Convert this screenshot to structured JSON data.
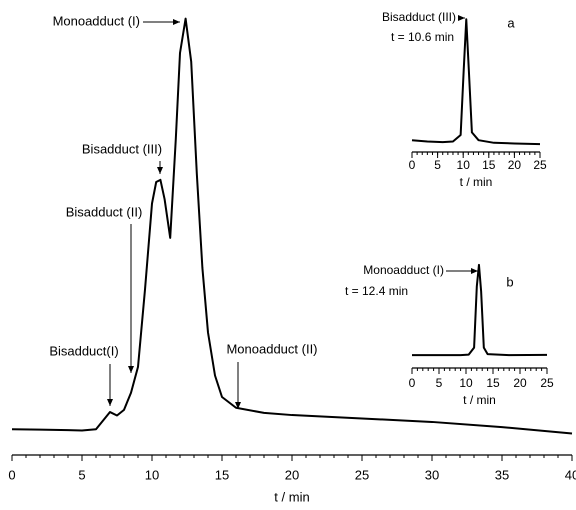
{
  "chart_data": [
    {
      "type": "line",
      "x_label": "t / min",
      "x": [
        0,
        2,
        4,
        5,
        6,
        6.5,
        7,
        7.5,
        8,
        8.5,
        9,
        9.5,
        10,
        10.3,
        10.6,
        10.9,
        11.3,
        11.7,
        12,
        12.4,
        12.8,
        13.2,
        13.6,
        14,
        14.5,
        15,
        16,
        18,
        20,
        25,
        30,
        35,
        40
      ],
      "values": [
        2.5,
        2.4,
        2.3,
        2.2,
        2.5,
        4.5,
        6.5,
        5.7,
        7,
        11,
        17,
        35,
        55,
        60,
        60.5,
        56,
        47,
        70,
        90,
        98,
        88,
        62,
        40,
        25,
        15,
        10,
        7.5,
        6.3,
        5.8,
        5,
        4.2,
        3,
        1.5
      ],
      "color": "#000000",
      "xlim": [
        0,
        40
      ],
      "xticks": [
        0,
        5,
        10,
        15,
        20,
        25,
        30,
        35,
        40
      ],
      "xminorticks": [
        0,
        1,
        2,
        3,
        4,
        5,
        6,
        7,
        8,
        9,
        10,
        11,
        12,
        13,
        14,
        15,
        16,
        17,
        18,
        19,
        20,
        21,
        22,
        23,
        24,
        25,
        26,
        27,
        28,
        29,
        30,
        31,
        32,
        33,
        34,
        35,
        36,
        37,
        38,
        39,
        40
      ],
      "ylim": [
        0,
        100
      ],
      "annotations": [
        "Monoadduct (I)",
        "Bisadduct (III)",
        "Bisadduct (II)",
        "Bisadduct(I)",
        "Monoadduct (II)"
      ]
    },
    {
      "type": "line",
      "label": "a",
      "x_label": "t / min",
      "x": [
        0,
        3,
        6,
        8,
        9.5,
        10.1,
        10.6,
        11.1,
        11.7,
        13,
        16,
        20,
        25
      ],
      "values": [
        6,
        5,
        4.5,
        5,
        10,
        60,
        99,
        60,
        12,
        6,
        4,
        3.5,
        3
      ],
      "color": "#000000",
      "xlim": [
        0,
        25
      ],
      "xticks": [
        0,
        5,
        10,
        15,
        20,
        25
      ],
      "xminorticks": [
        0,
        1,
        2,
        3,
        4,
        5,
        6,
        7,
        8,
        9,
        10,
        11,
        12,
        13,
        14,
        15,
        16,
        17,
        18,
        19,
        20,
        21,
        22,
        23,
        24,
        25
      ],
      "ylim": [
        0,
        100
      ],
      "annotations": [
        "Bisadduct (III)",
        "t = 10.6 min"
      ]
    },
    {
      "type": "line",
      "label": "b",
      "x_label": "t / min",
      "x": [
        0,
        5,
        9,
        10.5,
        11.5,
        12,
        12.4,
        12.8,
        13.3,
        14,
        18,
        25
      ],
      "values": [
        2,
        2,
        2,
        2.5,
        10,
        75,
        98,
        70,
        10,
        3,
        2,
        2.2
      ],
      "color": "#000000",
      "xlim": [
        0,
        25
      ],
      "xticks": [
        0,
        5,
        10,
        15,
        20,
        25
      ],
      "xminorticks": [
        0,
        1,
        2,
        3,
        4,
        5,
        6,
        7,
        8,
        9,
        10,
        11,
        12,
        13,
        14,
        15,
        16,
        17,
        18,
        19,
        20,
        21,
        22,
        23,
        24,
        25
      ],
      "ylim": [
        0,
        100
      ],
      "annotations": [
        "Monoadduct (I)",
        "t = 12.4 min"
      ]
    }
  ]
}
